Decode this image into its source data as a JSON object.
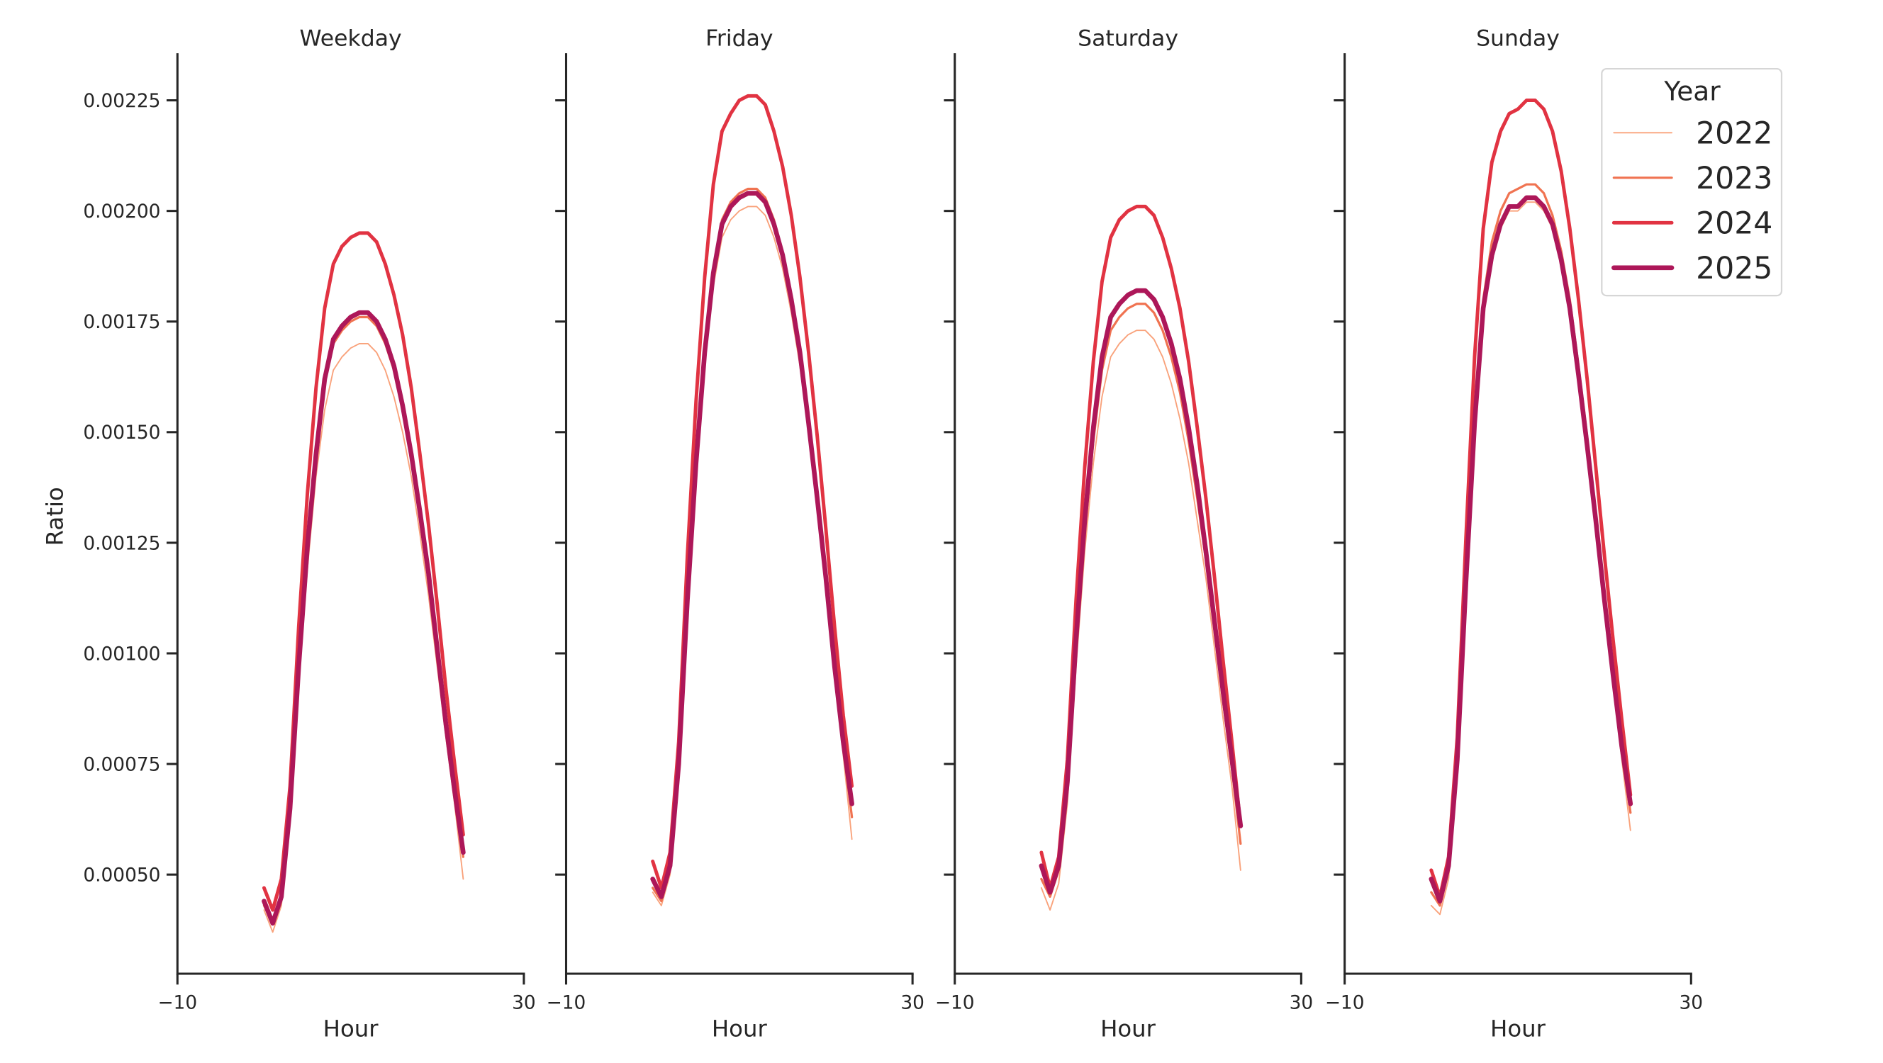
{
  "chart_data": {
    "type": "line",
    "xlabel": "Hour",
    "ylabel": "Ratio",
    "xlim": [
      -10,
      30
    ],
    "ylim": [
      0.000276,
      0.002354
    ],
    "x_ticks": [
      {
        "value": -10,
        "label": "−10"
      },
      {
        "value": 30,
        "label": "30"
      }
    ],
    "y_ticks": [
      {
        "value": 0.0005,
        "label": "0.00050"
      },
      {
        "value": 0.00075,
        "label": "0.00075"
      },
      {
        "value": 0.001,
        "label": "0.00100"
      },
      {
        "value": 0.00125,
        "label": "0.00125"
      },
      {
        "value": 0.0015,
        "label": "0.00150"
      },
      {
        "value": 0.00175,
        "label": "0.00175"
      },
      {
        "value": 0.002,
        "label": "0.00200"
      },
      {
        "value": 0.00225,
        "label": "0.00225"
      }
    ],
    "grid": false,
    "legend": {
      "title": "Year",
      "placement": "top-right",
      "entries": [
        "2022",
        "2023",
        "2024",
        "2025"
      ]
    },
    "x": [
      0,
      1,
      2,
      3,
      4,
      5,
      6,
      7,
      8,
      9,
      10,
      11,
      12,
      13,
      14,
      15,
      16,
      17,
      18,
      19,
      20,
      21,
      22,
      23
    ],
    "series_colors": {
      "2022": "#f9a27b",
      "2023": "#f07351",
      "2024": "#e13342",
      "2025": "#ad1759"
    },
    "panels": [
      {
        "title": "Weekday",
        "series": [
          {
            "name": "2022",
            "values": [
              0.00042,
              0.00037,
              0.00043,
              0.00062,
              0.00093,
              0.00119,
              0.0014,
              0.00155,
              0.00164,
              0.00167,
              0.00169,
              0.0017,
              0.0017,
              0.00168,
              0.00164,
              0.00158,
              0.0015,
              0.0014,
              0.00127,
              0.00113,
              0.00097,
              0.00081,
              0.00066,
              0.00049
            ]
          },
          {
            "name": "2023",
            "values": [
              0.00043,
              0.00039,
              0.00045,
              0.00065,
              0.00096,
              0.00123,
              0.00145,
              0.00161,
              0.0017,
              0.00173,
              0.00175,
              0.00176,
              0.00176,
              0.00174,
              0.0017,
              0.00164,
              0.00155,
              0.00145,
              0.00131,
              0.00117,
              0.00101,
              0.00084,
              0.00069,
              0.00054
            ]
          },
          {
            "name": "2024",
            "values": [
              0.00047,
              0.00042,
              0.00049,
              0.0007,
              0.00106,
              0.00136,
              0.0016,
              0.00178,
              0.00188,
              0.00192,
              0.00194,
              0.00195,
              0.00195,
              0.00193,
              0.00188,
              0.00181,
              0.00172,
              0.0016,
              0.00145,
              0.00129,
              0.00111,
              0.00092,
              0.00075,
              0.00059
            ]
          },
          {
            "name": "2025",
            "values": [
              0.00044,
              0.00039,
              0.00045,
              0.00065,
              0.00097,
              0.00124,
              0.00145,
              0.00162,
              0.00171,
              0.00174,
              0.00176,
              0.00177,
              0.00177,
              0.00175,
              0.00171,
              0.00165,
              0.00156,
              0.00145,
              0.00132,
              0.00118,
              0.00101,
              0.00084,
              0.00069,
              0.00055
            ]
          }
        ]
      },
      {
        "title": "Friday",
        "series": [
          {
            "name": "2022",
            "values": [
              0.00046,
              0.00043,
              0.0005,
              0.00073,
              0.00109,
              0.0014,
              0.00165,
              0.00183,
              0.00194,
              0.00198,
              0.002,
              0.00201,
              0.00201,
              0.00199,
              0.00194,
              0.00187,
              0.00177,
              0.00165,
              0.0015,
              0.00133,
              0.00114,
              0.00095,
              0.00077,
              0.00058
            ]
          },
          {
            "name": "2023",
            "values": [
              0.00047,
              0.00044,
              0.00051,
              0.00074,
              0.00111,
              0.00143,
              0.00168,
              0.00187,
              0.00198,
              0.00202,
              0.00204,
              0.00205,
              0.00205,
              0.00203,
              0.00198,
              0.0019,
              0.00181,
              0.00168,
              0.00153,
              0.00136,
              0.00117,
              0.00097,
              0.00079,
              0.00063
            ]
          },
          {
            "name": "2024",
            "values": [
              0.00053,
              0.00047,
              0.00055,
              0.0008,
              0.00122,
              0.00157,
              0.00185,
              0.00206,
              0.00218,
              0.00222,
              0.00225,
              0.00226,
              0.00226,
              0.00224,
              0.00218,
              0.0021,
              0.00199,
              0.00185,
              0.00168,
              0.00149,
              0.00128,
              0.00106,
              0.00086,
              0.0007
            ]
          },
          {
            "name": "2025",
            "values": [
              0.00049,
              0.00045,
              0.00052,
              0.00075,
              0.00112,
              0.00143,
              0.00168,
              0.00186,
              0.00197,
              0.00201,
              0.00203,
              0.00204,
              0.00204,
              0.00202,
              0.00197,
              0.0019,
              0.0018,
              0.00168,
              0.00152,
              0.00135,
              0.00117,
              0.00097,
              0.0008,
              0.00066
            ]
          }
        ]
      },
      {
        "title": "Saturday",
        "series": [
          {
            "name": "2022",
            "values": [
              0.00047,
              0.00042,
              0.00048,
              0.00066,
              0.00097,
              0.00123,
              0.00143,
              0.00158,
              0.00167,
              0.0017,
              0.00172,
              0.00173,
              0.00173,
              0.00171,
              0.00167,
              0.00161,
              0.00153,
              0.00143,
              0.0013,
              0.00117,
              0.00101,
              0.00085,
              0.0007,
              0.00051
            ]
          },
          {
            "name": "2023",
            "values": [
              0.00049,
              0.00045,
              0.00051,
              0.0007,
              0.00101,
              0.00127,
              0.00148,
              0.00164,
              0.00173,
              0.00176,
              0.00178,
              0.00179,
              0.00179,
              0.00177,
              0.00173,
              0.00167,
              0.00159,
              0.00148,
              0.00135,
              0.00121,
              0.00106,
              0.00089,
              0.00074,
              0.00057
            ]
          },
          {
            "name": "2024",
            "values": [
              0.00055,
              0.00047,
              0.00054,
              0.00076,
              0.00112,
              0.00142,
              0.00166,
              0.00184,
              0.00194,
              0.00198,
              0.002,
              0.00201,
              0.00201,
              0.00199,
              0.00194,
              0.00187,
              0.00178,
              0.00166,
              0.00151,
              0.00135,
              0.00117,
              0.00098,
              0.0008,
              0.00061
            ]
          },
          {
            "name": "2025",
            "values": [
              0.00052,
              0.00046,
              0.00052,
              0.00071,
              0.00103,
              0.0013,
              0.00151,
              0.00167,
              0.00176,
              0.00179,
              0.00181,
              0.00182,
              0.00182,
              0.0018,
              0.00176,
              0.0017,
              0.00162,
              0.00151,
              0.00138,
              0.00123,
              0.00107,
              0.00091,
              0.00076,
              0.00061
            ]
          }
        ]
      },
      {
        "title": "Sunday",
        "series": [
          {
            "name": "2022",
            "values": [
              0.00043,
              0.00041,
              0.00049,
              0.00073,
              0.00113,
              0.0015,
              0.00176,
              0.00189,
              0.00196,
              0.002,
              0.002,
              0.00202,
              0.00202,
              0.002,
              0.00196,
              0.00188,
              0.00176,
              0.00162,
              0.00146,
              0.00128,
              0.0011,
              0.00093,
              0.00076,
              0.0006
            ]
          },
          {
            "name": "2023",
            "values": [
              0.00046,
              0.00043,
              0.00051,
              0.00076,
              0.00116,
              0.00154,
              0.0018,
              0.00193,
              0.002,
              0.00204,
              0.00205,
              0.00206,
              0.00206,
              0.00204,
              0.00199,
              0.00191,
              0.0018,
              0.00165,
              0.00149,
              0.00131,
              0.00113,
              0.00095,
              0.00079,
              0.00064
            ]
          },
          {
            "name": "2024",
            "values": [
              0.00051,
              0.00045,
              0.00054,
              0.00081,
              0.00126,
              0.00167,
              0.00196,
              0.00211,
              0.00218,
              0.00222,
              0.00223,
              0.00225,
              0.00225,
              0.00223,
              0.00218,
              0.00209,
              0.00196,
              0.0018,
              0.00162,
              0.00142,
              0.00122,
              0.00103,
              0.00085,
              0.00068
            ]
          },
          {
            "name": "2025",
            "values": [
              0.00049,
              0.00044,
              0.00052,
              0.00076,
              0.00116,
              0.00152,
              0.00178,
              0.0019,
              0.00197,
              0.00201,
              0.00201,
              0.00203,
              0.00203,
              0.00201,
              0.00197,
              0.00189,
              0.00178,
              0.00163,
              0.00147,
              0.0013,
              0.00112,
              0.00095,
              0.00079,
              0.00066
            ]
          }
        ]
      }
    ]
  }
}
